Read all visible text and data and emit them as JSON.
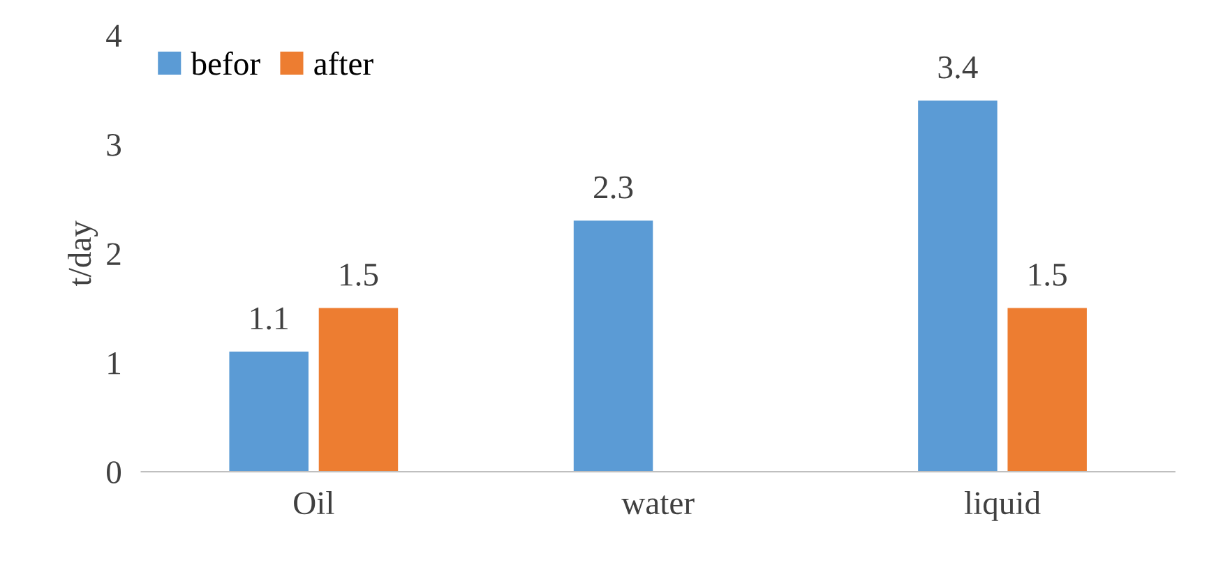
{
  "chart_data": {
    "type": "bar",
    "ylabel": "t/day",
    "categories": [
      "Oil",
      "water",
      "liquid"
    ],
    "series": [
      {
        "name": "befor",
        "color": "#5b9bd5",
        "values": [
          1.1,
          2.3,
          3.4
        ]
      },
      {
        "name": "after",
        "color": "#ed7d31",
        "values": [
          1.5,
          null,
          1.5
        ]
      }
    ],
    "ylim": [
      0,
      4
    ],
    "yticks": [
      0,
      1,
      2,
      3,
      4
    ],
    "grid": false,
    "legend": "top left",
    "data_labels": true
  }
}
